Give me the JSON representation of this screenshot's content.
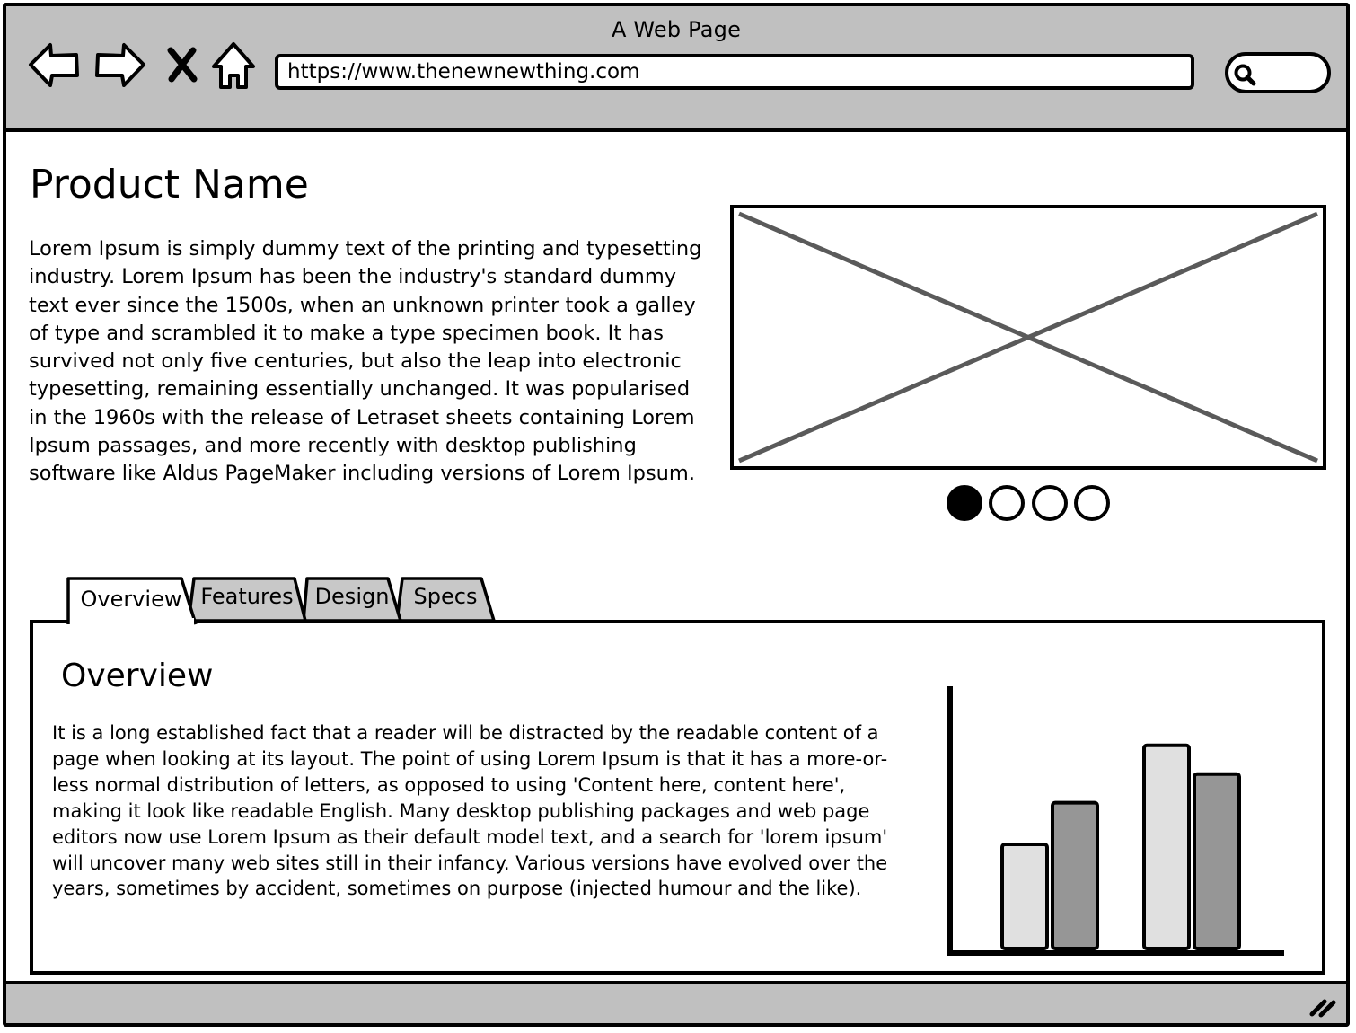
{
  "window": {
    "title": "A Web Page"
  },
  "toolbar": {
    "icons": [
      "back-arrow-icon",
      "forward-arrow-icon",
      "close-icon",
      "home-icon",
      "search-icon"
    ],
    "url": "https://www.thenewnewthing.com",
    "search_value": ""
  },
  "product": {
    "title": "Product Name",
    "description": "Lorem Ipsum is simply dummy text of the printing and typesetting industry. Lorem Ipsum has been the industry's standard dummy text ever since the 1500s, when an unknown printer took a galley of type and scrambled it to make a type specimen book. It has survived not only five centuries, but also the leap into electronic typesetting, remaining essentially unchanged. It was popularised in the 1960s with the release of Letraset sheets containing Lorem Ipsum passages, and more recently with desktop publishing software like Aldus PageMaker including versions of Lorem Ipsum."
  },
  "carousel": {
    "total": 4,
    "active": 1
  },
  "tabs": [
    {
      "label": "Overview",
      "active": true
    },
    {
      "label": "Features",
      "active": false
    },
    {
      "label": "Design",
      "active": false
    },
    {
      "label": "Specs",
      "active": false
    }
  ],
  "panel": {
    "title": "Overview",
    "text": "It is a long established fact that a reader will be distracted by the readable content of a page when looking at its layout. The point of using Lorem Ipsum is that it has a more-or-less normal distribution of letters, as opposed to using 'Content here, content here', making it look like readable English. Many desktop publishing packages and web page editors now use Lorem Ipsum as their default model text, and a search for 'lorem ipsum' will uncover many web sites still in their infancy. Various versions have evolved over the years, sometimes by accident, sometimes on purpose (injected humour and the like)."
  },
  "colors": {
    "chrome": "#c0c0c0",
    "series_light": "#e0e0e0",
    "series_dark": "#969696",
    "placeholder_stroke": "#5a5a5a"
  },
  "chart_data": {
    "type": "bar",
    "title": "",
    "xlabel": "",
    "ylabel": "",
    "categories": [
      "",
      ""
    ],
    "series": [
      {
        "values": [
          40,
          56
        ]
      },
      {
        "values": [
          78,
          67
        ]
      }
    ],
    "ylim": [
      0,
      100
    ],
    "grid": false,
    "legend": "none"
  }
}
